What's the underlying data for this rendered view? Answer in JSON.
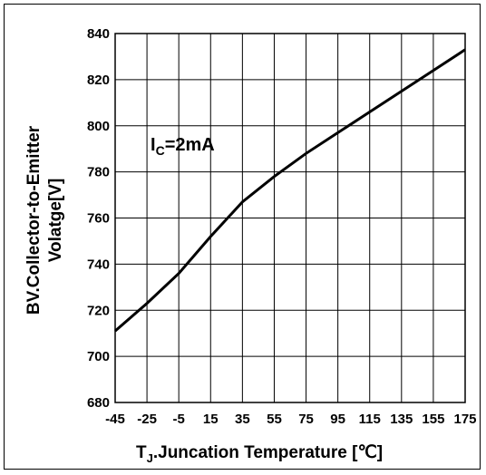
{
  "chart_data": {
    "type": "line",
    "title": "",
    "xlabel": {
      "prefix": "T",
      "subscript": "J",
      "rest": ".Juncation Temperature [",
      "unit": "℃",
      "close": "]"
    },
    "ylabel_lines": [
      "BV.Collector-to-Emitter",
      "Volatge[V]"
    ],
    "x_ticks": [
      -45,
      -25,
      -5,
      15,
      35,
      55,
      75,
      95,
      115,
      135,
      155,
      175
    ],
    "y_ticks": [
      680,
      700,
      720,
      740,
      760,
      780,
      800,
      820,
      840
    ],
    "xlim": [
      -45,
      175
    ],
    "ylim": [
      680,
      840
    ],
    "grid": true,
    "annotation": {
      "prefix": "I",
      "subscript": "C",
      "rest": "=2mA"
    },
    "series": [
      {
        "x": [
          -45,
          -25,
          -5,
          15,
          35,
          55,
          75,
          95,
          115,
          135,
          155,
          175
        ],
        "y": [
          711,
          723,
          736,
          752,
          767,
          778,
          788,
          797,
          806,
          815,
          824,
          833
        ]
      }
    ],
    "colors": {
      "line": "#000000",
      "grid": "#000000",
      "border": "#000000"
    }
  }
}
